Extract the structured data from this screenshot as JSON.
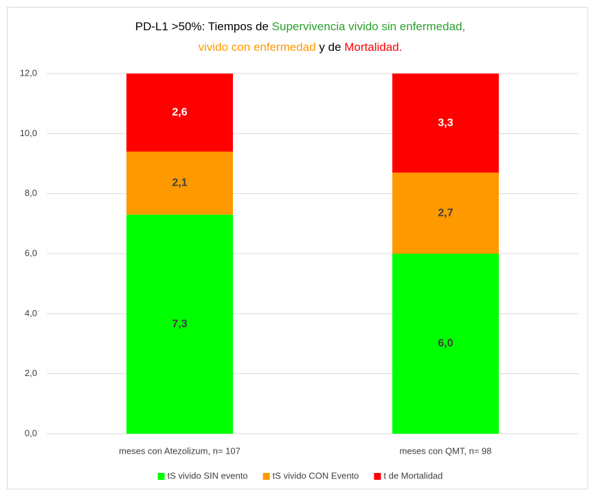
{
  "chart_data": {
    "type": "stacked_bar",
    "title": [
      [
        {
          "text": "PD-L1 >50%: Tiempos de ",
          "color": "#000000"
        },
        {
          "text": "Supervivencia vivido sin enfermedad",
          "color": "#2ca02c"
        },
        {
          "text": ",",
          "color": "#2ca02c"
        }
      ],
      [
        {
          "text": "vivido con enfermedad",
          "color": "#ff9900"
        },
        {
          "text": " y de ",
          "color": "#000000"
        },
        {
          "text": "Mortalidad",
          "color": "#ff0000"
        },
        {
          "text": ".",
          "color": "#ff0000"
        }
      ]
    ],
    "categories": [
      "meses con Atezolizum, n= 107",
      "meses con QMT, n= 98"
    ],
    "series": [
      {
        "name": "tS vivido SIN evento",
        "color": "#00ff00",
        "label_color": "#404040",
        "values": [
          7.3,
          6.0
        ],
        "value_labels": [
          "7,3",
          "6,0"
        ]
      },
      {
        "name": "tS vivido CON Evento",
        "color": "#ff9900",
        "label_color": "#404040",
        "values": [
          2.1,
          2.7
        ],
        "value_labels": [
          "2,1",
          "2,7"
        ]
      },
      {
        "name": "t de Mortalidad",
        "color": "#ff0000",
        "label_color": "#ffffff",
        "values": [
          2.6,
          3.3
        ],
        "value_labels": [
          "2,6",
          "3,3"
        ]
      }
    ],
    "ylim": [
      0,
      12
    ],
    "yticks": [
      {
        "value": 0,
        "label": "0,0"
      },
      {
        "value": 2,
        "label": "2,0"
      },
      {
        "value": 4,
        "label": "4,0"
      },
      {
        "value": 6,
        "label": "6,0"
      },
      {
        "value": 8,
        "label": "8,0"
      },
      {
        "value": 10,
        "label": "10,0"
      },
      {
        "value": 12,
        "label": "12,0"
      }
    ],
    "grid": true,
    "legend": "bottom"
  }
}
